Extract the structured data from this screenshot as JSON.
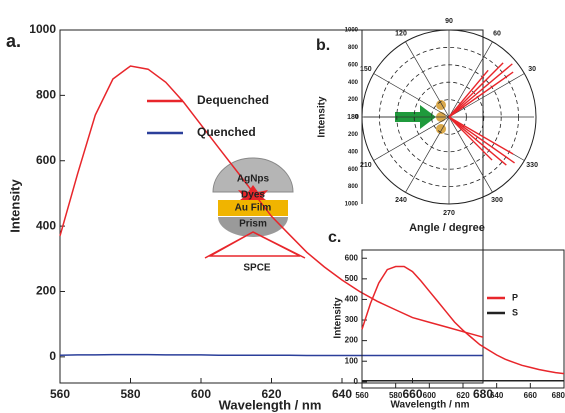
{
  "chart_data": [
    {
      "type": "line",
      "panel_label": "a.",
      "xlabel": "Wavelength / nm",
      "ylabel": "Intensity",
      "x": [
        560,
        565,
        570,
        575,
        580,
        585,
        590,
        595,
        600,
        605,
        610,
        615,
        620,
        625,
        630,
        635,
        640,
        645,
        650,
        655,
        660,
        665,
        670,
        675,
        680
      ],
      "series": [
        {
          "name": "Dequenched",
          "color": "#e8262b",
          "values": [
            370,
            560,
            740,
            850,
            890,
            880,
            840,
            780,
            710,
            640,
            570,
            500,
            430,
            375,
            320,
            275,
            235,
            200,
            170,
            145,
            120,
            105,
            90,
            75,
            60
          ]
        },
        {
          "name": "Quenched",
          "color": "#2b3f9a",
          "values": [
            5,
            6,
            6,
            7,
            7,
            7,
            6,
            6,
            6,
            5,
            5,
            5,
            5,
            5,
            4,
            4,
            4,
            4,
            4,
            4,
            4,
            4,
            4,
            4,
            4
          ]
        }
      ],
      "xlim": [
        560,
        680
      ],
      "ylim": [
        -80,
        1000
      ],
      "xticks": [
        560,
        580,
        600,
        620,
        640,
        660,
        680
      ],
      "yticks": [
        0,
        200,
        400,
        600,
        800,
        1000
      ],
      "annotations": [
        "AgNps",
        "Dyes",
        "Au Film",
        "Prism",
        "SPCE"
      ]
    },
    {
      "type": "polar",
      "panel_label": "b.",
      "xlabel": "Angle / degree",
      "ylabel": "Intensity",
      "angles": [
        35,
        40,
        45,
        50,
        -30,
        -35,
        -40,
        -45
      ],
      "values": [
        900,
        950,
        880,
        700,
        850,
        920,
        860,
        700
      ],
      "color": "#e8262b",
      "angle_ticks": [
        90,
        60,
        30,
        330,
        300,
        270,
        240,
        210,
        180,
        150,
        120
      ],
      "ylim": [
        0,
        1000
      ],
      "yticks": [
        0,
        200,
        400,
        600,
        800,
        1000
      ]
    },
    {
      "type": "line",
      "panel_label": "c.",
      "xlabel": "Wavelength / nm",
      "ylabel": "Intensity",
      "x": [
        560,
        565,
        570,
        575,
        580,
        585,
        590,
        595,
        600,
        605,
        610,
        615,
        620,
        625,
        630,
        635,
        640,
        645,
        650,
        655,
        660,
        665,
        670,
        675,
        680
      ],
      "series": [
        {
          "name": "P",
          "color": "#e8262b",
          "values": [
            255,
            380,
            480,
            545,
            560,
            560,
            535,
            490,
            440,
            390,
            340,
            290,
            250,
            215,
            180,
            155,
            130,
            110,
            95,
            80,
            70,
            60,
            52,
            45,
            40
          ]
        },
        {
          "name": "S",
          "color": "#222222",
          "values": [
            5,
            5,
            5,
            5,
            5,
            5,
            5,
            5,
            5,
            5,
            5,
            5,
            5,
            5,
            5,
            5,
            5,
            5,
            5,
            5,
            5,
            5,
            5,
            5,
            5
          ]
        }
      ],
      "xlim": [
        560,
        680
      ],
      "ylim": [
        -30,
        640
      ],
      "xticks": [
        560,
        580,
        600,
        620,
        640,
        660,
        680
      ],
      "yticks": [
        0,
        100,
        200,
        300,
        400,
        500,
        600
      ]
    }
  ]
}
